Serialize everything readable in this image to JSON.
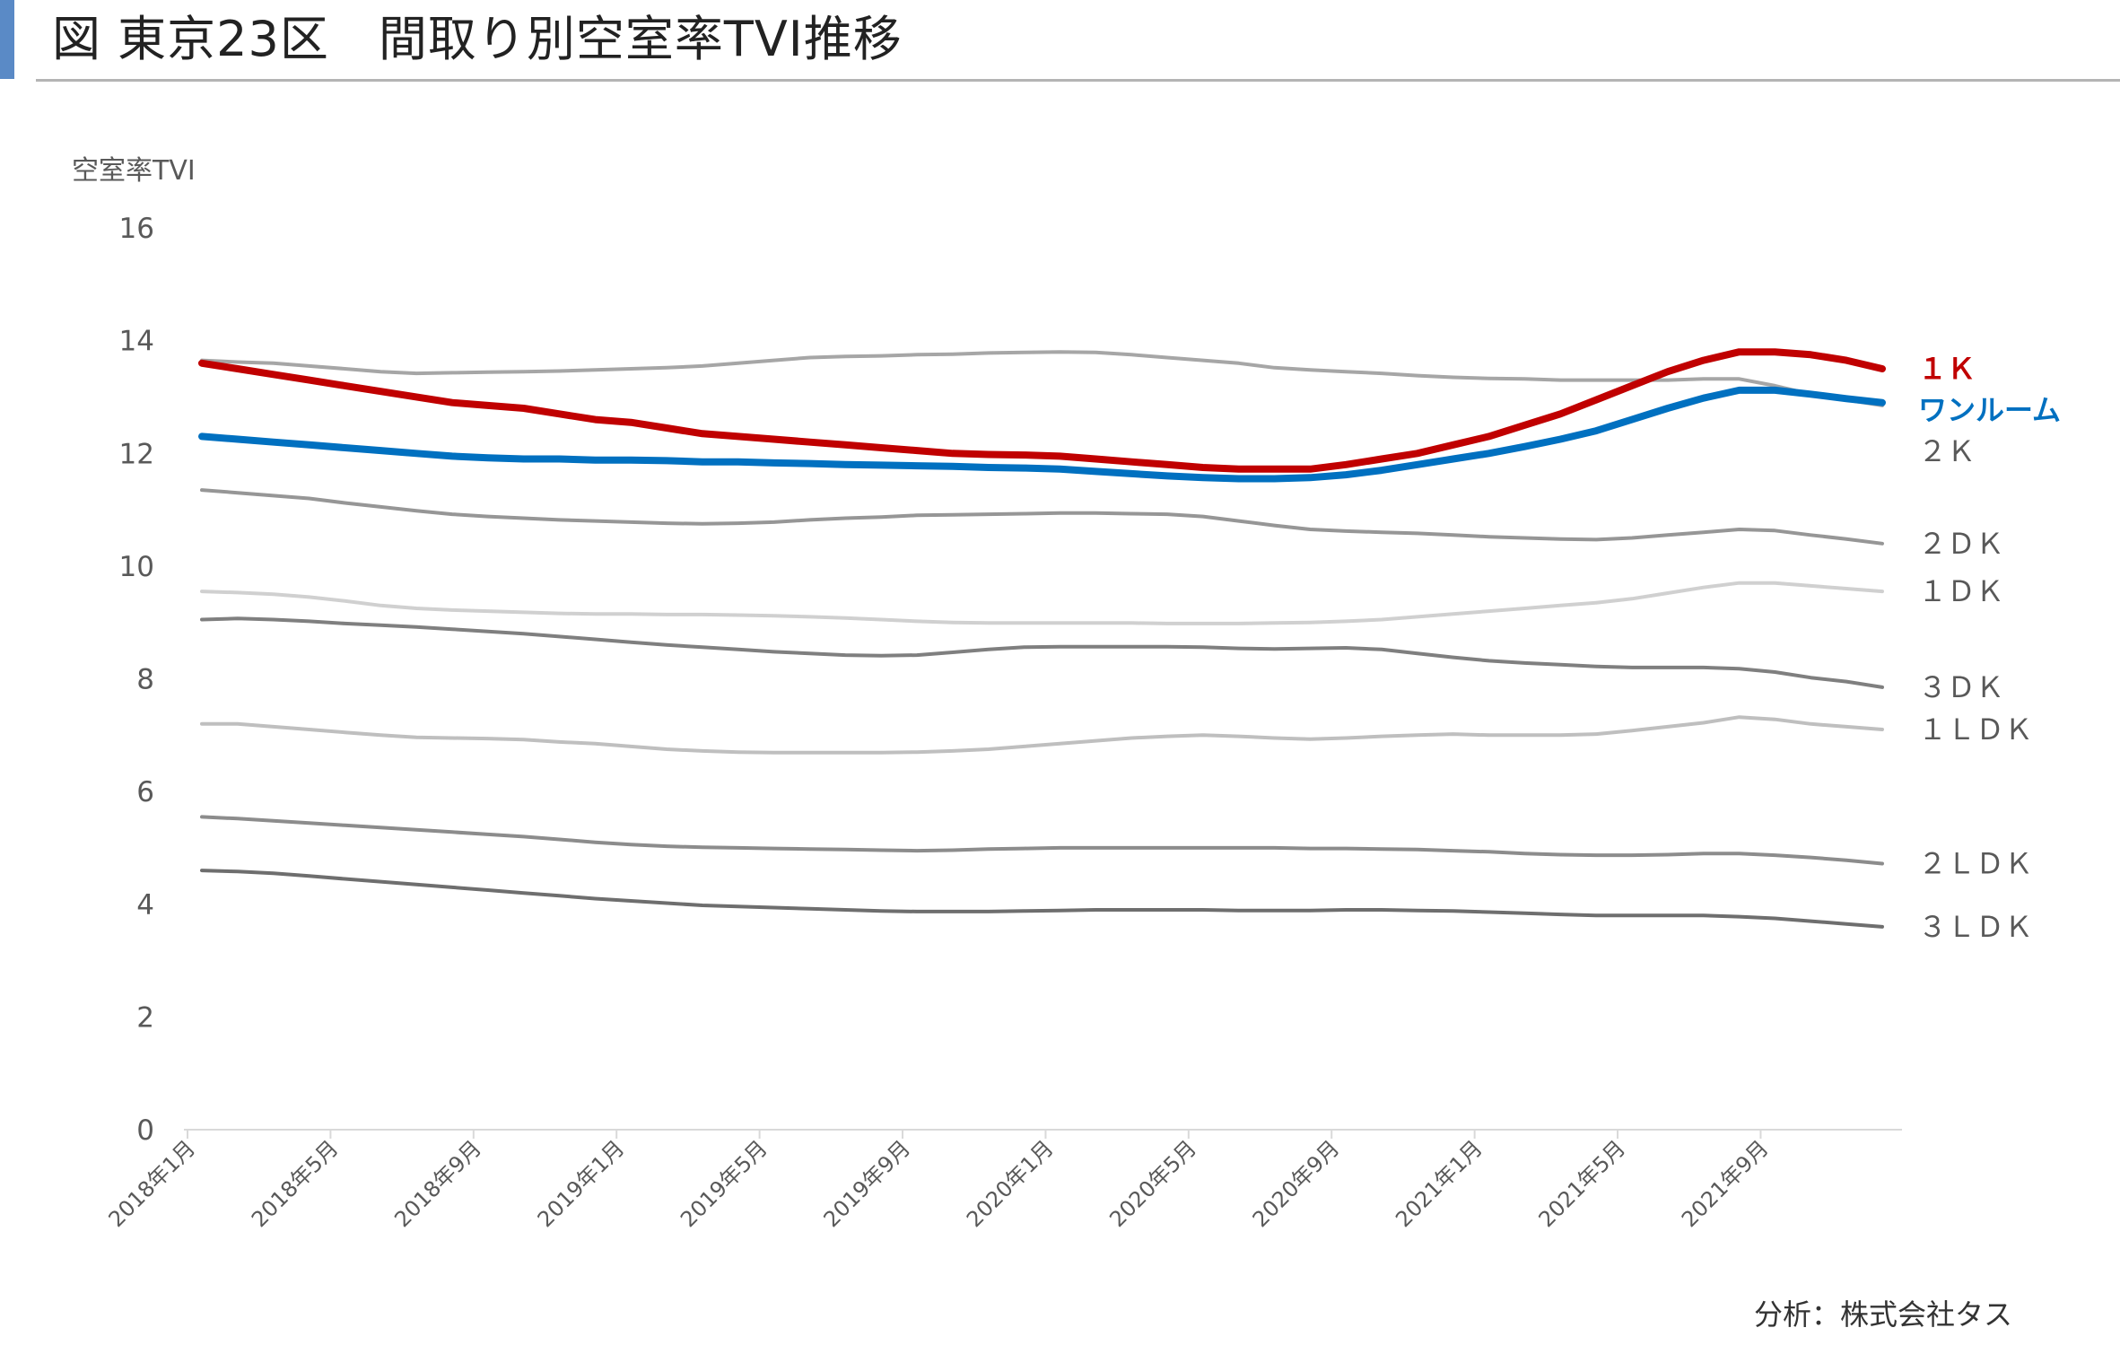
{
  "header": {
    "title": "図 東京23区　間取り別空室率TVI推移",
    "accent_color": "#5a8ac6"
  },
  "footer": {
    "credit": "分析：株式会社タス"
  },
  "chart_data": {
    "type": "line",
    "title": "",
    "ylabel": "空室率TVI",
    "xlabel": "",
    "ylim": [
      0,
      16
    ],
    "yticks": [
      0,
      2,
      4,
      6,
      8,
      10,
      12,
      14,
      16
    ],
    "grid": false,
    "legend": "labels at line ends (right)",
    "x": [
      "2018年1月",
      "2018年2月",
      "2018年3月",
      "2018年4月",
      "2018年5月",
      "2018年6月",
      "2018年7月",
      "2018年8月",
      "2018年9月",
      "2018年10月",
      "2018年11月",
      "2018年12月",
      "2019年1月",
      "2019年2月",
      "2019年3月",
      "2019年4月",
      "2019年5月",
      "2019年6月",
      "2019年7月",
      "2019年8月",
      "2019年9月",
      "2019年10月",
      "2019年11月",
      "2019年12月",
      "2020年1月",
      "2020年2月",
      "2020年3月",
      "2020年4月",
      "2020年5月",
      "2020年6月",
      "2020年7月",
      "2020年8月",
      "2020年9月",
      "2020年10月",
      "2020年11月",
      "2020年12月",
      "2021年1月",
      "2021年2月",
      "2021年3月",
      "2021年4月",
      "2021年5月",
      "2021年6月",
      "2021年7月",
      "2021年8月",
      "2021年9月",
      "2021年10月",
      "2021年11月",
      "2021年12月"
    ],
    "x_tick_labels": [
      "2018年1月",
      "2018年5月",
      "2018年9月",
      "2019年1月",
      "2019年5月",
      "2019年9月",
      "2020年1月",
      "2020年5月",
      "2020年9月",
      "2021年1月",
      "2021年5月",
      "2021年9月"
    ],
    "series": [
      {
        "name": "１Ｋ",
        "color": "#c00000",
        "width": 8,
        "label_bold": true,
        "values": [
          13.6,
          13.5,
          13.4,
          13.3,
          13.2,
          13.1,
          13.0,
          12.9,
          12.85,
          12.8,
          12.7,
          12.6,
          12.55,
          12.45,
          12.35,
          12.3,
          12.25,
          12.2,
          12.15,
          12.1,
          12.05,
          12.0,
          11.98,
          11.97,
          11.95,
          11.9,
          11.85,
          11.8,
          11.75,
          11.72,
          11.72,
          11.72,
          11.8,
          11.9,
          12.0,
          12.15,
          12.3,
          12.5,
          12.7,
          12.95,
          13.2,
          13.45,
          13.65,
          13.8,
          13.8,
          13.75,
          13.65,
          13.5
        ]
      },
      {
        "name": "ワンルーム",
        "color": "#0070c0",
        "width": 8,
        "label_bold": true,
        "values": [
          12.3,
          12.25,
          12.2,
          12.15,
          12.1,
          12.05,
          12.0,
          11.95,
          11.92,
          11.9,
          11.9,
          11.88,
          11.88,
          11.87,
          11.85,
          11.85,
          11.83,
          11.82,
          11.8,
          11.79,
          11.78,
          11.77,
          11.75,
          11.74,
          11.72,
          11.68,
          11.64,
          11.6,
          11.57,
          11.55,
          11.55,
          11.57,
          11.62,
          11.7,
          11.8,
          11.9,
          12.0,
          12.12,
          12.25,
          12.4,
          12.6,
          12.8,
          12.98,
          13.12,
          13.12,
          13.05,
          12.97,
          12.9
        ]
      },
      {
        "name": "２Ｋ",
        "color": "#a6a6a6",
        "width": 4,
        "values": [
          13.65,
          13.62,
          13.6,
          13.55,
          13.5,
          13.45,
          13.42,
          13.43,
          13.44,
          13.45,
          13.46,
          13.48,
          13.5,
          13.52,
          13.55,
          13.6,
          13.65,
          13.7,
          13.72,
          13.73,
          13.75,
          13.76,
          13.78,
          13.79,
          13.8,
          13.79,
          13.75,
          13.7,
          13.65,
          13.6,
          13.52,
          13.48,
          13.45,
          13.42,
          13.38,
          13.35,
          13.33,
          13.32,
          13.3,
          13.3,
          13.3,
          13.3,
          13.32,
          13.32,
          13.2,
          13.05,
          12.95,
          12.85
        ]
      },
      {
        "name": "２ＤＫ",
        "color": "#969696",
        "width": 4,
        "values": [
          11.35,
          11.3,
          11.25,
          11.2,
          11.12,
          11.05,
          10.98,
          10.92,
          10.88,
          10.85,
          10.82,
          10.8,
          10.78,
          10.76,
          10.75,
          10.76,
          10.78,
          10.82,
          10.85,
          10.87,
          10.9,
          10.91,
          10.92,
          10.93,
          10.94,
          10.94,
          10.93,
          10.92,
          10.88,
          10.8,
          10.72,
          10.65,
          10.62,
          10.6,
          10.58,
          10.55,
          10.52,
          10.5,
          10.48,
          10.47,
          10.5,
          10.55,
          10.6,
          10.65,
          10.63,
          10.55,
          10.48,
          10.4
        ]
      },
      {
        "name": "１ＤＫ",
        "color": "#d0d0d0",
        "width": 4,
        "values": [
          9.55,
          9.53,
          9.5,
          9.45,
          9.38,
          9.3,
          9.25,
          9.22,
          9.2,
          9.18,
          9.16,
          9.15,
          9.15,
          9.14,
          9.14,
          9.13,
          9.12,
          9.1,
          9.08,
          9.05,
          9.02,
          9.0,
          8.99,
          8.99,
          8.99,
          8.99,
          8.99,
          8.98,
          8.98,
          8.98,
          8.99,
          9.0,
          9.02,
          9.05,
          9.1,
          9.15,
          9.2,
          9.25,
          9.3,
          9.35,
          9.42,
          9.52,
          9.62,
          9.7,
          9.7,
          9.65,
          9.6,
          9.55
        ]
      },
      {
        "name": "３ＤＫ",
        "color": "#7f7f7f",
        "width": 4,
        "values": [
          9.05,
          9.07,
          9.05,
          9.02,
          8.98,
          8.95,
          8.92,
          8.88,
          8.84,
          8.8,
          8.75,
          8.7,
          8.65,
          8.6,
          8.56,
          8.52,
          8.48,
          8.45,
          8.42,
          8.41,
          8.42,
          8.47,
          8.52,
          8.56,
          8.57,
          8.57,
          8.57,
          8.57,
          8.56,
          8.54,
          8.53,
          8.54,
          8.55,
          8.52,
          8.45,
          8.38,
          8.32,
          8.28,
          8.25,
          8.22,
          8.2,
          8.2,
          8.2,
          8.18,
          8.12,
          8.02,
          7.95,
          7.85
        ]
      },
      {
        "name": "１ＬＤＫ",
        "color": "#bfbfbf",
        "width": 4,
        "values": [
          7.2,
          7.2,
          7.15,
          7.1,
          7.05,
          7.0,
          6.96,
          6.95,
          6.94,
          6.92,
          6.88,
          6.85,
          6.8,
          6.75,
          6.72,
          6.7,
          6.69,
          6.69,
          6.69,
          6.69,
          6.7,
          6.72,
          6.75,
          6.8,
          6.85,
          6.9,
          6.95,
          6.98,
          7.0,
          6.98,
          6.95,
          6.93,
          6.95,
          6.98,
          7.0,
          7.02,
          7.0,
          7.0,
          7.0,
          7.02,
          7.08,
          7.15,
          7.22,
          7.32,
          7.28,
          7.2,
          7.15,
          7.1
        ]
      },
      {
        "name": "２ＬＤＫ",
        "color": "#8c8c8c",
        "width": 4,
        "values": [
          5.55,
          5.52,
          5.48,
          5.44,
          5.4,
          5.36,
          5.32,
          5.28,
          5.24,
          5.2,
          5.15,
          5.1,
          5.06,
          5.03,
          5.01,
          5.0,
          4.99,
          4.98,
          4.97,
          4.96,
          4.95,
          4.96,
          4.98,
          4.99,
          5.0,
          5.0,
          5.0,
          5.0,
          5.0,
          5.0,
          5.0,
          4.99,
          4.99,
          4.98,
          4.97,
          4.95,
          4.93,
          4.9,
          4.88,
          4.87,
          4.87,
          4.88,
          4.9,
          4.9,
          4.87,
          4.83,
          4.78,
          4.72
        ]
      },
      {
        "name": "３ＬＤＫ",
        "color": "#6e6e6e",
        "width": 4,
        "values": [
          4.6,
          4.58,
          4.55,
          4.5,
          4.45,
          4.4,
          4.35,
          4.3,
          4.25,
          4.2,
          4.15,
          4.1,
          4.06,
          4.02,
          3.98,
          3.96,
          3.94,
          3.92,
          3.9,
          3.88,
          3.87,
          3.87,
          3.87,
          3.88,
          3.89,
          3.9,
          3.9,
          3.9,
          3.9,
          3.89,
          3.89,
          3.89,
          3.9,
          3.9,
          3.89,
          3.88,
          3.86,
          3.84,
          3.82,
          3.8,
          3.8,
          3.8,
          3.8,
          3.78,
          3.75,
          3.7,
          3.65,
          3.6
        ]
      }
    ]
  }
}
